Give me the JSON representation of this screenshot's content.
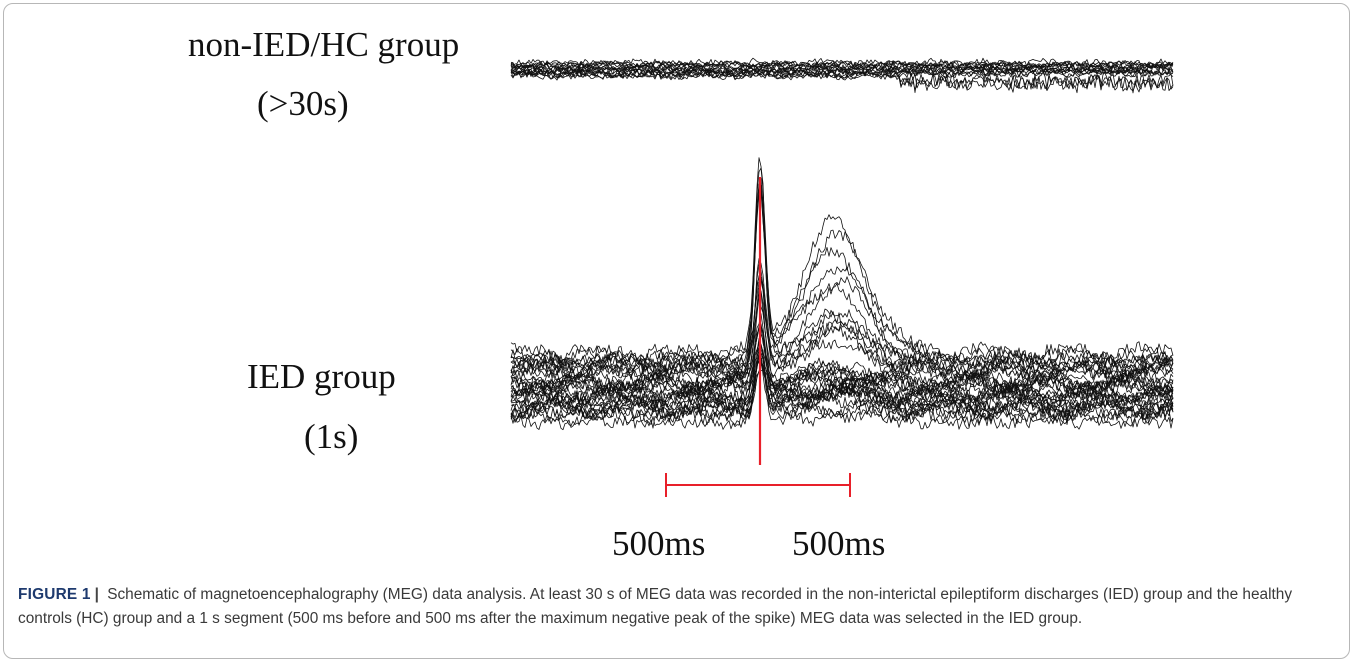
{
  "panel_top": {
    "title": "non-IED/HC group",
    "duration": "(>30s)"
  },
  "panel_bottom": {
    "title": "IED group",
    "duration": "(1s)"
  },
  "scale": {
    "left_label": "500ms",
    "right_label": "500ms",
    "marker_color": "#e8202a"
  },
  "caption": {
    "label": "FIGURE 1",
    "separator": "|",
    "text": "Schematic of magnetoencephalography (MEG) data analysis. At least 30 s of MEG data was recorded in the non-interictal epileptiform discharges (IED) group and the healthy controls (HC) group and a 1 s segment (500 ms before and 500 ms after the maximum negative peak of the spike) MEG data was selected in the IED group."
  }
}
